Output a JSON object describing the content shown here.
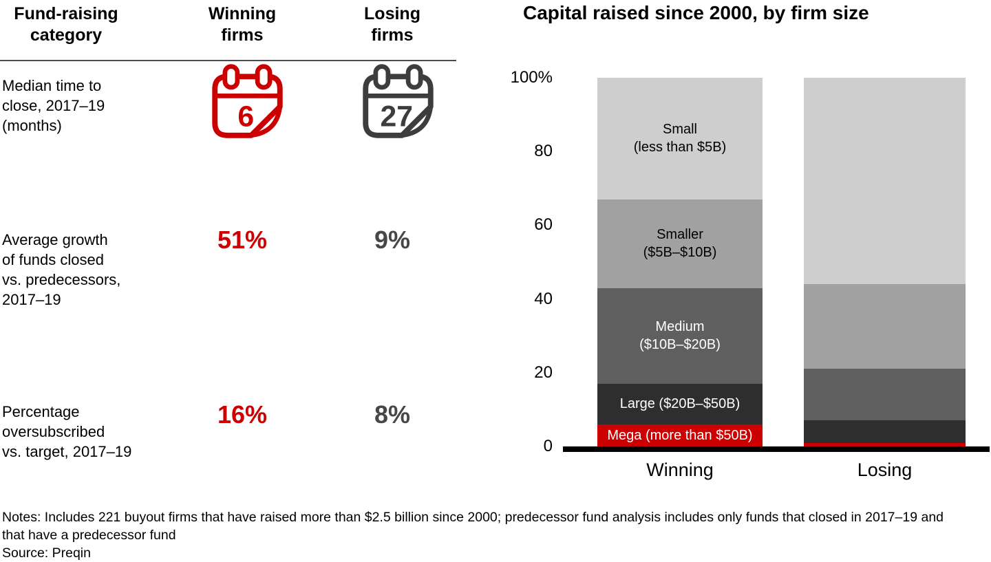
{
  "table": {
    "header_category": "Fund-raising\ncategory",
    "header_winning": "Winning\nfirms",
    "header_losing": "Losing\nfirms",
    "rows": [
      {
        "label": "Median time to\nclose, 2017–19\n(months)",
        "winning": "6",
        "losing": "27",
        "icon": "calendar"
      },
      {
        "label": "Average growth\nof funds closed\nvs. predecessors,\n2017–19",
        "winning": "51%",
        "losing": "9%"
      },
      {
        "label": "Percentage\noversubscribed\nvs. target, 2017–19",
        "winning": "16%",
        "losing": "8%"
      }
    ]
  },
  "chart_data": {
    "type": "bar",
    "variant": "stacked-100-percent",
    "title": "Capital raised since 2000, by firm size",
    "categories": [
      "Winning",
      "Losing"
    ],
    "unit": "%",
    "ylim": [
      0,
      100
    ],
    "grid": false,
    "legend_position": "labels-inside-first-bar",
    "yticks": [
      {
        "value": 100,
        "label": "100%"
      },
      {
        "value": 80,
        "label": "80"
      },
      {
        "value": 60,
        "label": "60"
      },
      {
        "value": 40,
        "label": "40"
      },
      {
        "value": 20,
        "label": "20"
      },
      {
        "value": 0,
        "label": "0"
      }
    ],
    "series": [
      {
        "name": "Mega (more than $50B)",
        "label": "Mega (more than $50B)",
        "color": "#cc0000",
        "label_color": "#ffffff",
        "values": [
          6,
          1
        ]
      },
      {
        "name": "Large ($20B–$50B)",
        "label": "Large ($20B–$50B)",
        "color": "#2e2e2e",
        "label_color": "#ffffff",
        "values": [
          11,
          6
        ]
      },
      {
        "name": "Medium ($10B–$20B)",
        "label": "Medium\n($10B–$20B)",
        "color": "#5f5f5f",
        "label_color": "#ffffff",
        "values": [
          26,
          14
        ]
      },
      {
        "name": "Smaller ($5B–$10B)",
        "label": "Smaller\n($5B–$10B)",
        "color": "#a1a1a1",
        "label_color": "#000000",
        "values": [
          24,
          23
        ]
      },
      {
        "name": "Small (less than $5B)",
        "label": "Small\n(less than $5B)",
        "color": "#cecece",
        "label_color": "#000000",
        "values": [
          33,
          56
        ]
      }
    ]
  },
  "colors": {
    "accent_red": "#cc0000",
    "value_gray": "#474747",
    "icon_gray": "#3d3d3d",
    "axis_black": "#000000"
  },
  "footer": {
    "notes": "Notes: Includes 221 buyout firms that have raised more than $2.5 billion since 2000; predecessor fund analysis includes only funds that closed in 2017–19 and\nthat have a predecessor fund",
    "source": "Source: Preqin"
  }
}
